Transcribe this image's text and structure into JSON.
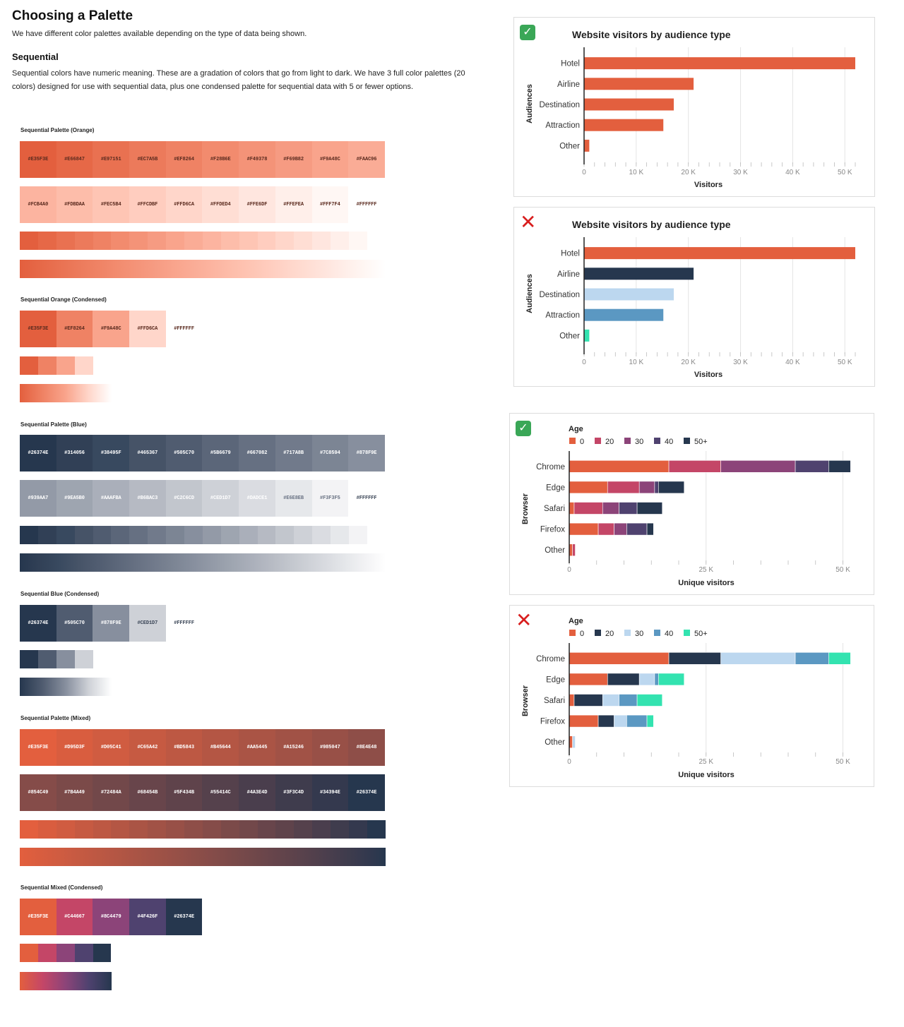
{
  "page": {
    "title": "Choosing a Palette",
    "intro": "We have different color palettes available depending on the type of data being shown.",
    "section_heading": "Sequential",
    "section_description": "Sequential colors have numeric meaning. These are a gradation of colors that go from light to dark. We have 3 full color palettes (20 colors) designed for use with sequential data, plus one condensed palette for sequential data with 5 or fewer options."
  },
  "palettes": [
    {
      "label": "Sequential Palette (Orange)",
      "rows": [
        [
          "#E35F3E",
          "#E66847",
          "#E97151",
          "#EC7A5B",
          "#EF8264",
          "#F28B6E",
          "#F49378",
          "#F69B82",
          "#F9A48C",
          "#FAAC96"
        ],
        [
          "#FCB4A0",
          "#FDBDAA",
          "#FEC5B4",
          "#FFCDBF",
          "#FFD6CA",
          "#FFDED4",
          "#FFE6DF",
          "#FFEFEA",
          "#FFF7F4",
          "#FFFFFF"
        ]
      ],
      "text_dark": true
    },
    {
      "label": "Sequential Orange (Condensed)",
      "rows": [
        [
          "#E35F3E",
          "#EF8264",
          "#F9A48C",
          "#FFD6CA",
          "#FFFFFF"
        ]
      ],
      "text_dark": true
    },
    {
      "label": "Sequential Palette (Blue)",
      "rows": [
        [
          "#26374E",
          "#314056",
          "#38495F",
          "#465367",
          "#505C70",
          "#5B6679",
          "#667082",
          "#717A8B",
          "#7C8594",
          "#878F9E"
        ],
        [
          "#939AA7",
          "#9EA5B0",
          "#AAAFBA",
          "#B6BAC3",
          "#C2C6CD",
          "#CED1D7",
          "#DADCE1",
          "#E6E8EB",
          "#F3F3F5",
          "#FFFFFF"
        ]
      ],
      "text_dark": false
    },
    {
      "label": "Sequential Blue (Condensed)",
      "rows": [
        [
          "#26374E",
          "#505C70",
          "#878F9E",
          "#CED1D7",
          "#FFFFFF"
        ]
      ],
      "text_dark": false
    },
    {
      "label": "Sequential Palette (Mixed)",
      "rows": [
        [
          "#E35F3E",
          "#D95D3F",
          "#D05C41",
          "#C65A42",
          "#BD5843",
          "#B45644",
          "#AA5445",
          "#A15246",
          "#985047",
          "#8E4E48"
        ],
        [
          "#854C49",
          "#7B4A49",
          "#72484A",
          "#68454B",
          "#5F434B",
          "#55414C",
          "#4A3E4D",
          "#3F3C4D",
          "#34394E",
          "#26374E"
        ]
      ],
      "text_dark": false
    },
    {
      "label": "Sequential Mixed (Condensed)",
      "rows": [
        [
          "#E35F3E",
          "#C44667",
          "#8C4479",
          "#4F426F",
          "#26374E"
        ]
      ],
      "text_dark": false
    }
  ],
  "charts": [
    {
      "verdict": "good",
      "badge": "✓",
      "chart_data": {
        "type": "bar",
        "orientation": "horizontal",
        "title": "Website visitors by audience type",
        "xlabel": "Visitors",
        "ylabel": "Audiences",
        "categories": [
          "Hotel",
          "Airline",
          "Destination",
          "Attraction",
          "Other"
        ],
        "values": [
          52000,
          21000,
          17200,
          15200,
          1000
        ],
        "bar_colors": [
          "#E35F3E",
          "#E35F3E",
          "#E35F3E",
          "#E35F3E",
          "#E35F3E"
        ],
        "xlim": [
          0,
          52000
        ],
        "xticks": [
          0,
          10000,
          20000,
          30000,
          40000,
          50000
        ],
        "xtick_labels": [
          "0",
          "10 K",
          "20 K",
          "30 K",
          "40 K",
          "50 K"
        ],
        "grid": true
      }
    },
    {
      "verdict": "bad",
      "badge": "✕",
      "chart_data": {
        "type": "bar",
        "orientation": "horizontal",
        "title": "Website visitors by audience type",
        "xlabel": "Visitors",
        "ylabel": "Audiences",
        "categories": [
          "Hotel",
          "Airline",
          "Destination",
          "Attraction",
          "Other"
        ],
        "values": [
          52000,
          21000,
          17200,
          15200,
          1000
        ],
        "bar_colors": [
          "#E35F3E",
          "#26374E",
          "#BCD7EF",
          "#5B98C2",
          "#33E3B0"
        ],
        "xlim": [
          0,
          52000
        ],
        "xticks": [
          0,
          10000,
          20000,
          30000,
          40000,
          50000
        ],
        "xtick_labels": [
          "0",
          "10 K",
          "20 K",
          "30 K",
          "40 K",
          "50 K"
        ],
        "grid": true
      }
    },
    {
      "verdict": "good",
      "badge": "✓",
      "chart_data": {
        "type": "bar",
        "orientation": "horizontal",
        "stacked": true,
        "legend_title": "Age",
        "xlabel": "Unique visitors",
        "ylabel": "Browser",
        "categories": [
          "Chrome",
          "Edge",
          "Safari",
          "Firefox",
          "Other"
        ],
        "series": [
          {
            "name": "0",
            "color": "#E35F3E",
            "values": [
              18200,
              7000,
              900,
              5300,
              600
            ]
          },
          {
            "name": "20",
            "color": "#C44667",
            "values": [
              9500,
              5800,
              5200,
              2900,
              500
            ]
          },
          {
            "name": "30",
            "color": "#8C4479",
            "values": [
              13600,
              2800,
              3000,
              2300,
              0
            ]
          },
          {
            "name": "40",
            "color": "#4F426F",
            "values": [
              6100,
              700,
              3300,
              3700,
              0
            ]
          },
          {
            "name": "50+",
            "color": "#26374E",
            "values": [
              4000,
              4700,
              4600,
              1200,
              0
            ]
          }
        ],
        "xlim": [
          0,
          52000
        ],
        "xticks": [
          0,
          25000,
          50000
        ],
        "xtick_labels": [
          "0",
          "25 K",
          "50 K"
        ],
        "grid": true
      }
    },
    {
      "verdict": "bad",
      "badge": "✕",
      "chart_data": {
        "type": "bar",
        "orientation": "horizontal",
        "stacked": true,
        "legend_title": "Age",
        "xlabel": "Unique visitors",
        "ylabel": "Browser",
        "categories": [
          "Chrome",
          "Edge",
          "Safari",
          "Firefox",
          "Other"
        ],
        "series": [
          {
            "name": "0",
            "color": "#E35F3E",
            "values": [
              18200,
              7000,
              900,
              5300,
              600
            ]
          },
          {
            "name": "20",
            "color": "#26374E",
            "values": [
              9500,
              5800,
              5200,
              2900,
              0
            ]
          },
          {
            "name": "30",
            "color": "#BCD7EF",
            "values": [
              13600,
              2800,
              3000,
              2300,
              500
            ]
          },
          {
            "name": "40",
            "color": "#5B98C2",
            "values": [
              6100,
              700,
              3300,
              3700,
              0
            ]
          },
          {
            "name": "50+",
            "color": "#33E3B0",
            "values": [
              4000,
              4700,
              4600,
              1200,
              0
            ]
          }
        ],
        "xlim": [
          0,
          52000
        ],
        "xticks": [
          0,
          25000,
          50000
        ],
        "xtick_labels": [
          "0",
          "25 K",
          "50 K"
        ],
        "grid": true
      }
    }
  ]
}
